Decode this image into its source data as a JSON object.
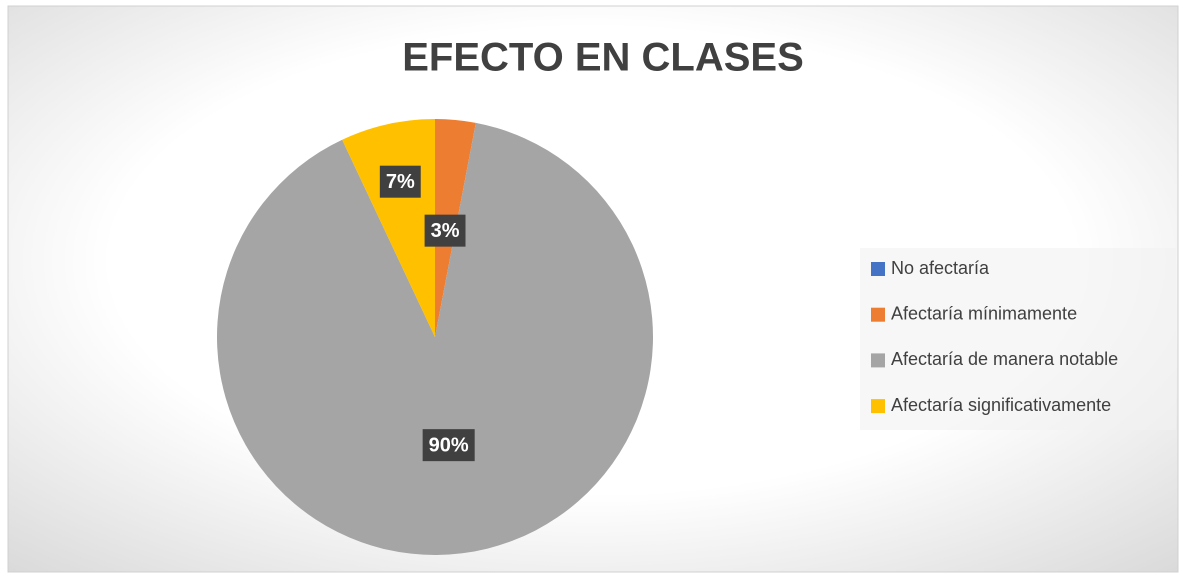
{
  "chart_data": {
    "type": "pie",
    "title": "EFECTO EN CLASES",
    "categories": [
      "No afectaría",
      "Afectaría mínimamente",
      "Afectaría de manera notable",
      "Afectaría significativamente"
    ],
    "values": [
      0,
      3,
      90,
      7
    ],
    "value_labels": [
      null,
      "3%",
      "90%",
      "7%"
    ],
    "colors": [
      "#4472c4",
      "#ed7d31",
      "#a5a5a5",
      "#ffc000"
    ],
    "legend": "right"
  }
}
